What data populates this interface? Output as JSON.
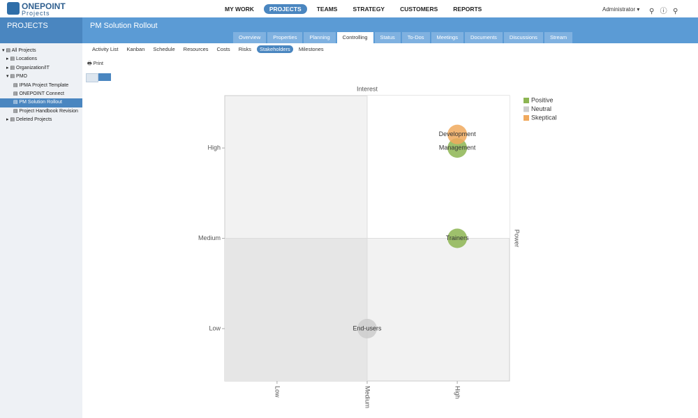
{
  "header": {
    "logo": "ONEPOINT",
    "logo_sub": "Projects",
    "nav": [
      "MY WORK",
      "PROJECTS",
      "TEAMS",
      "STRATEGY",
      "CUSTOMERS",
      "REPORTS"
    ],
    "nav_active": 1,
    "user": "Administrator"
  },
  "sidebar": {
    "title": "PROJECTS",
    "items": [
      "All Projects",
      "Locations",
      "Organization/IT",
      "PMO",
      "IPMA Project Template",
      "ONEPOINT Connect",
      "PM Solution Rollout",
      "Project Handbook Revision",
      "Deleted Projects"
    ],
    "selected": 6
  },
  "project": {
    "title": "PM Solution Rollout",
    "tabs": [
      "Overview",
      "Properties",
      "Planning",
      "Controlling",
      "Status",
      "To-Dos",
      "Meetings",
      "Documents",
      "Discussions",
      "Stream"
    ],
    "tab_active": 3,
    "subtabs": [
      "Activity List",
      "Kanban",
      "Schedule",
      "Resources",
      "Costs",
      "Risks",
      "Stakeholders",
      "Milestones"
    ],
    "subtab_active": 6,
    "print": "Print"
  },
  "chart_data": {
    "type": "bubble",
    "xlabel": "Interest",
    "ylabel": "Power",
    "xlim": [
      0.42,
      3.58
    ],
    "ylim": [
      0.42,
      3.58
    ],
    "xticks": [
      {
        "value": 1,
        "label": "Low"
      },
      {
        "value": 2,
        "label": "Medium"
      },
      {
        "value": 3,
        "label": "High"
      }
    ],
    "yticks": [
      {
        "value": 1,
        "label": "Low"
      },
      {
        "value": 2,
        "label": "Medium"
      },
      {
        "value": 3,
        "label": "High"
      }
    ],
    "legend": "top-right",
    "series": [
      {
        "name": "Positive",
        "color": "#8db552",
        "x": [
          3,
          3
        ],
        "y": [
          3,
          2
        ],
        "labels": [
          "Management",
          "Trainers"
        ]
      },
      {
        "name": "Neutral",
        "color": "#cccccc",
        "x": [
          2
        ],
        "y": [
          1
        ],
        "labels": [
          "End-users"
        ]
      },
      {
        "name": "Skeptical",
        "color": "#f0a95d",
        "x": [
          3
        ],
        "y": [
          3.15
        ],
        "labels": [
          "Development"
        ]
      }
    ]
  }
}
